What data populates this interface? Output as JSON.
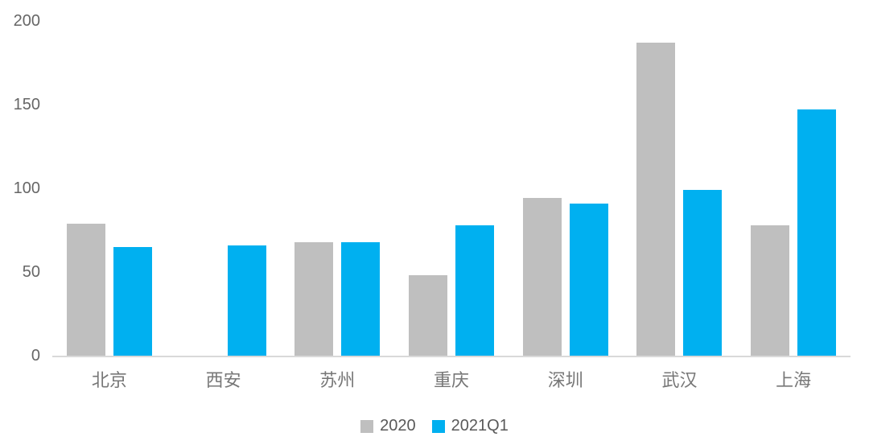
{
  "chart_data": {
    "type": "bar",
    "categories": [
      "北京",
      "西安",
      "苏州",
      "重庆",
      "深圳",
      "武汉",
      "上海"
    ],
    "series": [
      {
        "name": "2020",
        "color": "#BFBFBF",
        "values": [
          79,
          0,
          68,
          48,
          94,
          187,
          78
        ]
      },
      {
        "name": "2021Q1",
        "color": "#00B0F0",
        "values": [
          65,
          66,
          68,
          78,
          91,
          99,
          147
        ]
      }
    ],
    "title": "",
    "xlabel": "",
    "ylabel": "",
    "ylim": [
      0,
      200
    ],
    "yticks": [
      0,
      50,
      100,
      150,
      200
    ],
    "grid": false,
    "legend_position": "bottom"
  },
  "colors": {
    "background": "#FFFFFF",
    "axis_line": "#D9D9D9",
    "y_tick_label": "#666666",
    "category_label": "#777777",
    "legend_text": "#595959"
  }
}
